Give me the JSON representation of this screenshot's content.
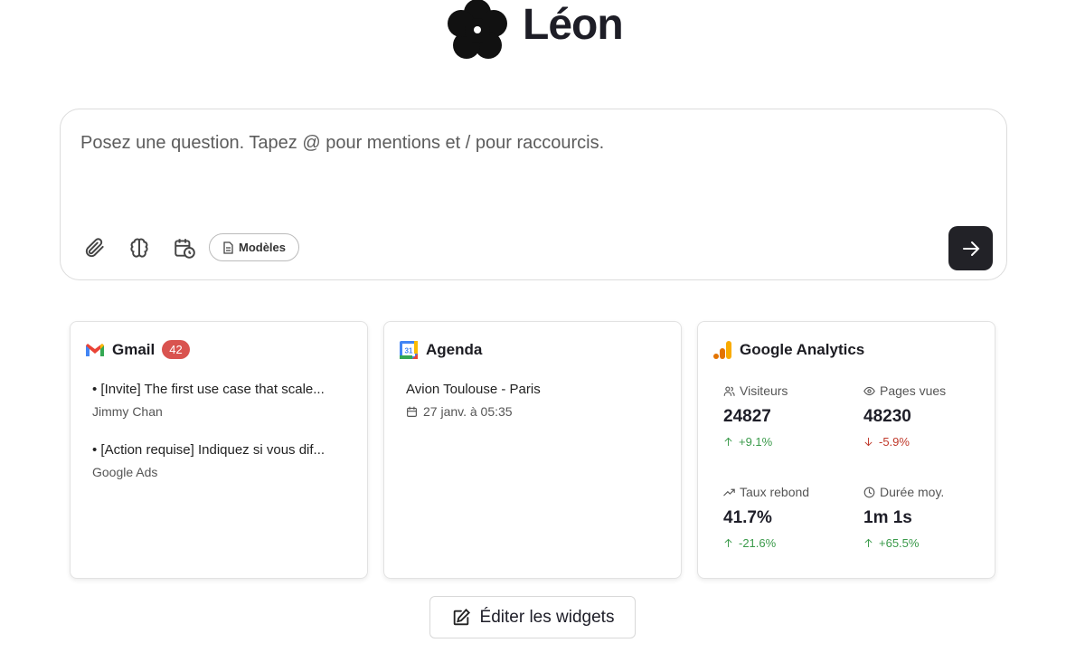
{
  "header": {
    "title": "Léon"
  },
  "composer": {
    "placeholder": "Posez une question. Tapez @ pour mentions et / pour raccourcis.",
    "templates_button": "Modèles"
  },
  "widgets": {
    "gmail": {
      "title": "Gmail",
      "badge": 42,
      "emails": [
        {
          "subject": "• [Invite] The first use case that scale...",
          "sender": "Jimmy Chan"
        },
        {
          "subject": "• [Action requise] Indiquez si vous dif...",
          "sender": "Google Ads"
        }
      ]
    },
    "agenda": {
      "title": "Agenda",
      "icon_label": "31",
      "events": [
        {
          "title": "Avion Toulouse - Paris",
          "time": "27 janv. à 05:35"
        }
      ]
    },
    "analytics": {
      "title": "Google Analytics",
      "metrics": [
        {
          "label": "Visiteurs",
          "value": 24827,
          "change": "+9.1%",
          "trend": "up"
        },
        {
          "label": "Pages vues",
          "value": 48230,
          "change": "-5.9%",
          "trend": "down"
        },
        {
          "label": "Taux rebond",
          "value": "41.7%",
          "change": "-21.6%",
          "trend": "up"
        },
        {
          "label": "Durée moy.",
          "value": "1m 1s",
          "change": "+65.5%",
          "trend": "up"
        }
      ]
    }
  },
  "edit_button": "Éditer les widgets"
}
